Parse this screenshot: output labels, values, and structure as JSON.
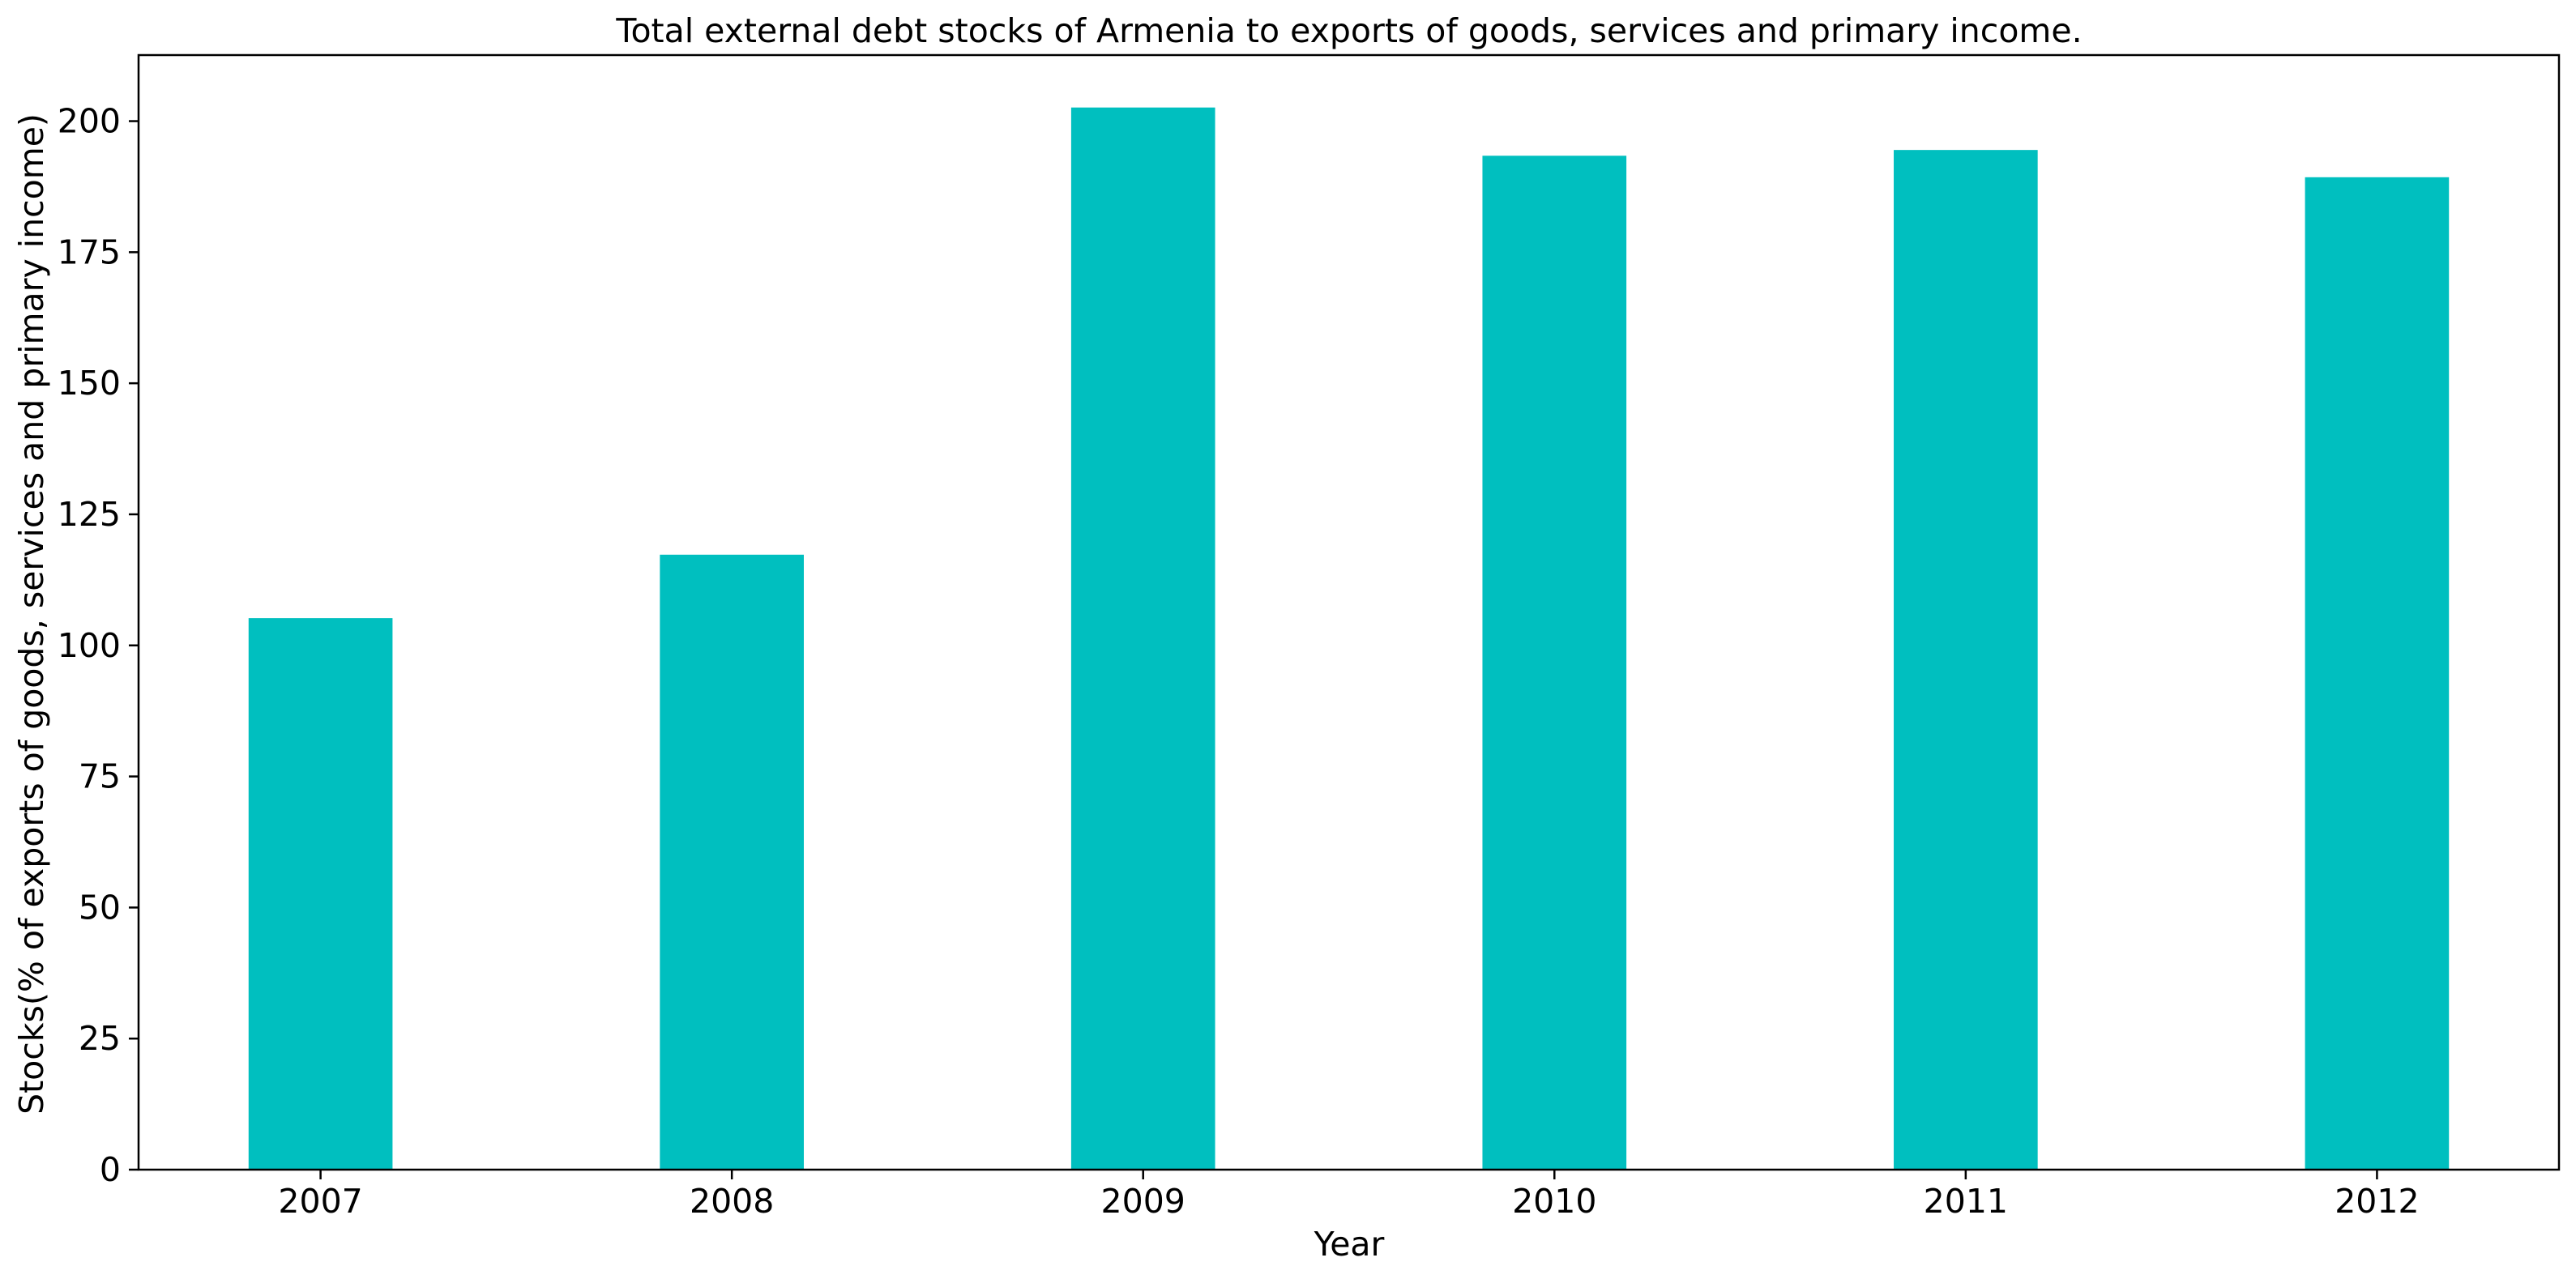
{
  "chart_data": {
    "type": "bar",
    "title": "Total external debt stocks of Armenia to exports of goods, services and primary income.",
    "xlabel": "Year",
    "ylabel": "Stocks(% of exports of goods, services and primary income)",
    "categories": [
      "2007",
      "2008",
      "2009",
      "2010",
      "2011",
      "2012"
    ],
    "values": [
      105.2,
      117.3,
      202.6,
      193.4,
      194.5,
      189.3
    ],
    "ylim": [
      0,
      212.6
    ],
    "yticks": [
      0,
      25,
      50,
      75,
      100,
      125,
      150,
      175,
      200
    ],
    "grid": false,
    "legend": "none",
    "bar_color": "#00bfbf"
  }
}
